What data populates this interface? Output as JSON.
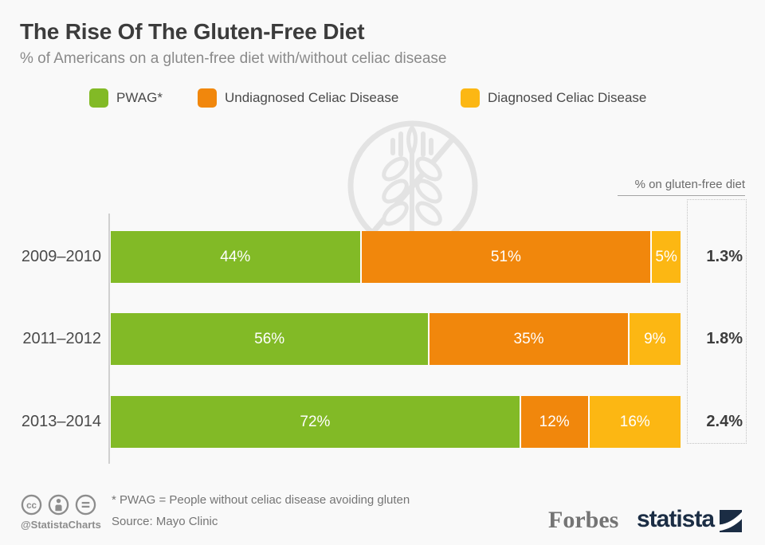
{
  "chart_data": {
    "type": "bar",
    "orientation": "horizontal",
    "stacked": true,
    "title": "The Rise Of The Gluten-Free Diet",
    "subtitle": "% of Americans on a gluten-free diet with/without celiac disease",
    "categories": [
      "2009–2010",
      "2011–2012",
      "2013–2014"
    ],
    "series": [
      {
        "name": "PWAG*",
        "color": "#82ba26",
        "values": [
          44,
          56,
          72
        ]
      },
      {
        "name": "Undiagnosed Celiac Disease",
        "color": "#f1870c",
        "values": [
          51,
          35,
          12
        ]
      },
      {
        "name": "Diagnosed Celiac Disease",
        "color": "#fcb713",
        "values": [
          5,
          9,
          16
        ]
      }
    ],
    "value_suffix": "%",
    "xlim": [
      0,
      100
    ],
    "grid": false,
    "legend_position": "top",
    "right_axis": {
      "title": "% on gluten-free diet",
      "values": [
        "1.3%",
        "1.8%",
        "2.4%"
      ]
    }
  },
  "watermark": {
    "icon": "gluten-free-wheat-icon",
    "color": "#e3e3e3"
  },
  "footer": {
    "footnote": "* PWAG = People without celiac disease avoiding gluten",
    "source": "Source: Mayo Clinic",
    "credit": "@StatistaCharts",
    "license_icons": [
      "cc-icon",
      "attribution-icon",
      "no-derivatives-icon"
    ],
    "publisher_logo": "Forbes",
    "brand_logo": "statista",
    "brand_color": "#1b2d44"
  },
  "colors": {
    "background": "#f9f9f9",
    "green": "#82ba26",
    "orange": "#f1870c",
    "yellow": "#fcb713"
  }
}
